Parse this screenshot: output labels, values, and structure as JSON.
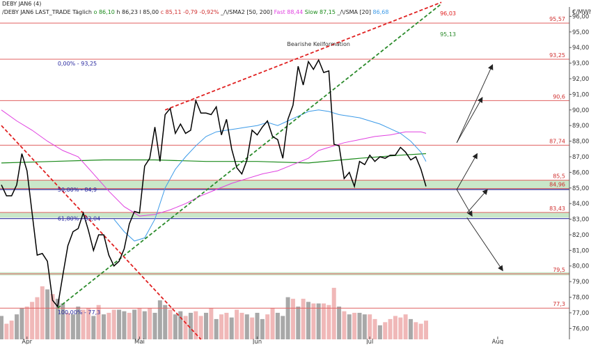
{
  "chart_data": {
    "type": "line",
    "title": "DEBY JAN6 (4)",
    "header": {
      "prefix": "/DEBY JAN6 LAST_TRADE Täglich",
      "open": "o 86,10",
      "high": "h 86,23",
      "low": "l 85,00",
      "close": "c 85,11",
      "change": "-0,79",
      "change_pct": "-0,92%",
      "sma2_label": "_/\\/SMA2 [50, 200]",
      "fast_label": "Fast 88,44",
      "slow_label": "Slow 87,15",
      "sma_label": "_/\\/SMA [20]",
      "sma_value": "86,68"
    },
    "y_unit": "€/MWh",
    "ylim": [
      75.3,
      96.6
    ],
    "y_ticks": [
      {
        "value": 76,
        "label": "76,00"
      },
      {
        "value": 77,
        "label": "77,00"
      },
      {
        "value": 78,
        "label": "78,00"
      },
      {
        "value": 79,
        "label": "79,00"
      },
      {
        "value": 80,
        "label": "80,00"
      },
      {
        "value": 81,
        "label": "81,00"
      },
      {
        "value": 82,
        "label": "82,00"
      },
      {
        "value": 83,
        "label": "83,00"
      },
      {
        "value": 84,
        "label": "84,00"
      },
      {
        "value": 85,
        "label": "85,00"
      },
      {
        "value": 86,
        "label": "86,00"
      },
      {
        "value": 87,
        "label": "87,00"
      },
      {
        "value": 88,
        "label": "88,00"
      },
      {
        "value": 89,
        "label": "89,00"
      },
      {
        "value": 90,
        "label": "90,00"
      },
      {
        "value": 91,
        "label": "91,00"
      },
      {
        "value": 92,
        "label": "92,00"
      },
      {
        "value": 93,
        "label": "93,00"
      },
      {
        "value": 94,
        "label": "94,00"
      },
      {
        "value": 95,
        "label": "95,00"
      },
      {
        "value": 96,
        "label": "96,00"
      }
    ],
    "x_range": [
      0,
      111
    ],
    "x_ticks": [
      {
        "x": 5,
        "label": "Apr"
      },
      {
        "x": 27,
        "label": "Mai"
      },
      {
        "x": 50,
        "label": "Jun"
      },
      {
        "x": 72,
        "label": "Jul"
      },
      {
        "x": 97,
        "label": "Aug"
      }
    ],
    "price": [
      [
        0,
        85.2
      ],
      [
        1,
        84.5
      ],
      [
        2,
        84.5
      ],
      [
        3,
        85.2
      ],
      [
        4,
        87.2
      ],
      [
        5,
        86.1
      ],
      [
        7,
        80.7
      ],
      [
        8,
        80.8
      ],
      [
        9,
        80.3
      ],
      [
        10,
        77.8
      ],
      [
        11,
        77.4
      ],
      [
        12,
        79.4
      ],
      [
        13,
        81.3
      ],
      [
        14,
        82.2
      ],
      [
        15,
        82.4
      ],
      [
        16,
        83.4
      ],
      [
        17,
        82.3
      ],
      [
        18,
        81.0
      ],
      [
        19,
        82.0
      ],
      [
        20,
        82.0
      ],
      [
        21,
        80.7
      ],
      [
        22,
        80.0
      ],
      [
        23,
        80.3
      ],
      [
        24,
        81.1
      ],
      [
        25,
        82.7
      ],
      [
        26,
        83.5
      ],
      [
        27,
        83.4
      ],
      [
        28,
        86.4
      ],
      [
        29,
        86.9
      ],
      [
        30,
        88.9
      ],
      [
        31,
        86.7
      ],
      [
        32,
        89.7
      ],
      [
        33,
        90.1
      ],
      [
        34,
        88.5
      ],
      [
        35,
        89.1
      ],
      [
        36,
        88.5
      ],
      [
        37,
        88.7
      ],
      [
        38,
        90.6
      ],
      [
        39,
        89.8
      ],
      [
        40,
        89.8
      ],
      [
        41,
        89.7
      ],
      [
        42,
        90.2
      ],
      [
        43,
        88.4
      ],
      [
        44,
        89.4
      ],
      [
        45,
        87.5
      ],
      [
        46,
        86.3
      ],
      [
        47,
        85.9
      ],
      [
        48,
        86.8
      ],
      [
        49,
        88.7
      ],
      [
        50,
        88.4
      ],
      [
        51,
        88.9
      ],
      [
        52,
        89.3
      ],
      [
        53,
        88.3
      ],
      [
        54,
        88.1
      ],
      [
        55,
        86.9
      ],
      [
        56,
        89.4
      ],
      [
        57,
        90.3
      ],
      [
        58,
        92.8
      ],
      [
        59,
        91.6
      ],
      [
        60,
        93.1
      ],
      [
        61,
        92.6
      ],
      [
        62,
        93.2
      ],
      [
        63,
        92.4
      ],
      [
        64,
        92.5
      ],
      [
        65,
        87.8
      ],
      [
        66,
        87.7
      ],
      [
        67,
        85.6
      ],
      [
        68,
        86.0
      ],
      [
        69,
        85.1
      ],
      [
        70,
        86.7
      ],
      [
        71,
        86.5
      ],
      [
        72,
        87.1
      ],
      [
        73,
        86.7
      ],
      [
        74,
        87.0
      ],
      [
        75,
        86.9
      ],
      [
        76,
        87.1
      ],
      [
        77,
        87.1
      ],
      [
        78,
        87.6
      ],
      [
        79,
        87.3
      ],
      [
        80,
        86.8
      ],
      [
        81,
        87.0
      ],
      [
        82,
        86.2
      ],
      [
        83,
        85.1
      ]
    ],
    "sma_blue": [
      [
        22,
        83.0
      ],
      [
        24,
        82.2
      ],
      [
        26,
        81.6
      ],
      [
        28,
        81.8
      ],
      [
        30,
        83.0
      ],
      [
        32,
        85.0
      ],
      [
        34,
        86.2
      ],
      [
        36,
        87.0
      ],
      [
        38,
        87.7
      ],
      [
        40,
        88.3
      ],
      [
        42,
        88.6
      ],
      [
        44,
        88.7
      ],
      [
        46,
        88.8
      ],
      [
        48,
        88.9
      ],
      [
        50,
        89.0
      ],
      [
        52,
        89.2
      ],
      [
        54,
        89.0
      ],
      [
        56,
        89.3
      ],
      [
        58,
        89.6
      ],
      [
        60,
        89.9
      ],
      [
        62,
        90.0
      ],
      [
        64,
        89.9
      ],
      [
        66,
        89.7
      ],
      [
        68,
        89.6
      ],
      [
        70,
        89.5
      ],
      [
        72,
        89.3
      ],
      [
        74,
        89.1
      ],
      [
        76,
        88.8
      ],
      [
        78,
        88.5
      ],
      [
        80,
        88.0
      ],
      [
        82,
        87.3
      ],
      [
        83,
        86.7
      ]
    ],
    "sma_magenta": [
      [
        0,
        90.0
      ],
      [
        3,
        89.3
      ],
      [
        6,
        88.7
      ],
      [
        9,
        88.0
      ],
      [
        12,
        87.4
      ],
      [
        15,
        87.0
      ],
      [
        18,
        85.9
      ],
      [
        21,
        84.8
      ],
      [
        24,
        83.8
      ],
      [
        27,
        83.2
      ],
      [
        30,
        83.3
      ],
      [
        33,
        83.6
      ],
      [
        36,
        84.0
      ],
      [
        39,
        84.5
      ],
      [
        42,
        84.9
      ],
      [
        45,
        85.3
      ],
      [
        48,
        85.6
      ],
      [
        51,
        85.9
      ],
      [
        54,
        86.1
      ],
      [
        57,
        86.5
      ],
      [
        60,
        86.9
      ],
      [
        62,
        87.4
      ],
      [
        64,
        87.6
      ],
      [
        67,
        87.9
      ],
      [
        70,
        88.1
      ],
      [
        73,
        88.3
      ],
      [
        76,
        88.4
      ],
      [
        79,
        88.6
      ],
      [
        82,
        88.6
      ],
      [
        83,
        88.5
      ]
    ],
    "sma_green": [
      [
        0,
        86.6
      ],
      [
        10,
        86.7
      ],
      [
        20,
        86.8
      ],
      [
        30,
        86.8
      ],
      [
        40,
        86.7
      ],
      [
        50,
        86.7
      ],
      [
        60,
        86.6
      ],
      [
        70,
        86.9
      ],
      [
        78,
        87.1
      ],
      [
        83,
        87.2
      ]
    ],
    "trendlines": [
      {
        "kind": "resistance",
        "color": "#e02020",
        "from": [
          32,
          90.0
        ],
        "to": [
          86,
          96.9
        ]
      },
      {
        "kind": "support",
        "color": "#2a8a2a",
        "from": [
          11,
          77.3
        ],
        "to": [
          86,
          96.8
        ]
      },
      {
        "kind": "down",
        "color": "#e02020",
        "from": [
          0,
          89.0
        ],
        "to": [
          39,
          75.3
        ]
      }
    ],
    "support_resistance": [
      {
        "value": 95.57,
        "label": "95,57",
        "color": "#e06060"
      },
      {
        "value": 93.25,
        "label": "93,25",
        "color": "#e06060"
      },
      {
        "value": 90.6,
        "label": "90,6",
        "color": "#e06060"
      },
      {
        "value": 87.74,
        "label": "87,74",
        "color": "#e06060"
      },
      {
        "value": 85.5,
        "label": "85,5",
        "color": "#e06060"
      },
      {
        "value": 84.96,
        "label": "84,96",
        "color": "#e06060"
      },
      {
        "value": 83.43,
        "label": "83,43",
        "color": "#e06060"
      },
      {
        "value": 79.5,
        "label": "79,5",
        "color": "#e06060"
      },
      {
        "value": 77.3,
        "label": "77,3",
        "color": "#e06060"
      }
    ],
    "bands": [
      {
        "from": 84.9,
        "to": 85.5
      },
      {
        "from": 83.1,
        "to": 83.43
      },
      {
        "from": 79.4,
        "to": 79.6
      }
    ],
    "fib_lines": [
      {
        "value": 84.9,
        "label": "50,00% - 84,9",
        "color": "#3030a0",
        "label_x": 11
      },
      {
        "value": 83.04,
        "label": "61,80% - 83,04",
        "color": "#3030a0",
        "label_x": 11
      }
    ],
    "fib_texts": [
      {
        "value": 93.25,
        "label": "0,00% - 93,25",
        "x": 11
      },
      {
        "value": 77.3,
        "label": "100,00% - 77,3",
        "x": 11
      }
    ],
    "trend_value_labels": [
      {
        "x": 86,
        "value": 96.03,
        "label": "96,03",
        "color": "#e02020"
      },
      {
        "x": 86,
        "value": 95.13,
        "label": "95,13",
        "color": "#2a8a2a"
      }
    ],
    "annotation": {
      "label": "Bearishe Keilformation",
      "x": 62,
      "value": 94.1
    },
    "arrows": [
      {
        "from": [
          89,
          87.9
        ],
        "to": [
          96,
          92.9
        ]
      },
      {
        "from": [
          89,
          87.9
        ],
        "to": [
          94,
          90.8
        ]
      },
      {
        "from": [
          89,
          84.9
        ],
        "to": [
          93,
          87.2
        ]
      },
      {
        "from": [
          91,
          83.4
        ],
        "to": [
          95,
          84.9
        ]
      },
      {
        "from": [
          89,
          84.9
        ],
        "to": [
          92,
          83.2
        ]
      },
      {
        "from": [
          91,
          83.1
        ],
        "to": [
          98,
          79.7
        ]
      }
    ],
    "volume": {
      "ylim": [
        75.3,
        79.6
      ],
      "bars": [
        {
          "x": 0,
          "h": 76.8,
          "c": "gray"
        },
        {
          "x": 1,
          "h": 76.3,
          "c": "pink"
        },
        {
          "x": 2,
          "h": 76.5,
          "c": "pink"
        },
        {
          "x": 3,
          "h": 76.9,
          "c": "gray"
        },
        {
          "x": 4,
          "h": 77.3,
          "c": "gray"
        },
        {
          "x": 5,
          "h": 77.4,
          "c": "pink"
        },
        {
          "x": 6,
          "h": 77.7,
          "c": "pink"
        },
        {
          "x": 7,
          "h": 78.0,
          "c": "pink"
        },
        {
          "x": 8,
          "h": 78.7,
          "c": "pink"
        },
        {
          "x": 9,
          "h": 78.5,
          "c": "gray"
        },
        {
          "x": 10,
          "h": 78.2,
          "c": "pink"
        },
        {
          "x": 11,
          "h": 77.9,
          "c": "gray"
        },
        {
          "x": 12,
          "h": 77.6,
          "c": "gray"
        },
        {
          "x": 13,
          "h": 77.0,
          "c": "pink"
        },
        {
          "x": 14,
          "h": 76.9,
          "c": "gray"
        },
        {
          "x": 15,
          "h": 77.4,
          "c": "gray"
        },
        {
          "x": 16,
          "h": 77.2,
          "c": "pink"
        },
        {
          "x": 17,
          "h": 77.3,
          "c": "pink"
        },
        {
          "x": 18,
          "h": 76.8,
          "c": "gray"
        },
        {
          "x": 19,
          "h": 77.5,
          "c": "pink"
        },
        {
          "x": 20,
          "h": 76.9,
          "c": "gray"
        },
        {
          "x": 21,
          "h": 77.0,
          "c": "pink"
        },
        {
          "x": 22,
          "h": 77.2,
          "c": "pink"
        },
        {
          "x": 23,
          "h": 77.2,
          "c": "gray"
        },
        {
          "x": 24,
          "h": 77.1,
          "c": "gray"
        },
        {
          "x": 25,
          "h": 77.0,
          "c": "pink"
        },
        {
          "x": 26,
          "h": 77.2,
          "c": "gray"
        },
        {
          "x": 27,
          "h": 77.3,
          "c": "pink"
        },
        {
          "x": 28,
          "h": 77.1,
          "c": "gray"
        },
        {
          "x": 29,
          "h": 77.3,
          "c": "pink"
        },
        {
          "x": 30,
          "h": 77.0,
          "c": "gray"
        },
        {
          "x": 31,
          "h": 77.8,
          "c": "gray"
        },
        {
          "x": 32,
          "h": 77.5,
          "c": "gray"
        },
        {
          "x": 33,
          "h": 77.2,
          "c": "pink"
        },
        {
          "x": 34,
          "h": 76.9,
          "c": "gray"
        },
        {
          "x": 35,
          "h": 77.1,
          "c": "gray"
        },
        {
          "x": 36,
          "h": 76.8,
          "c": "pink"
        },
        {
          "x": 37,
          "h": 77.0,
          "c": "gray"
        },
        {
          "x": 38,
          "h": 77.1,
          "c": "pink"
        },
        {
          "x": 39,
          "h": 76.8,
          "c": "pink"
        },
        {
          "x": 40,
          "h": 77.0,
          "c": "gray"
        },
        {
          "x": 41,
          "h": 77.3,
          "c": "pink"
        },
        {
          "x": 42,
          "h": 76.6,
          "c": "gray"
        },
        {
          "x": 43,
          "h": 76.9,
          "c": "pink"
        },
        {
          "x": 44,
          "h": 77.0,
          "c": "pink"
        },
        {
          "x": 45,
          "h": 76.7,
          "c": "gray"
        },
        {
          "x": 46,
          "h": 77.2,
          "c": "pink"
        },
        {
          "x": 47,
          "h": 77.0,
          "c": "pink"
        },
        {
          "x": 48,
          "h": 76.9,
          "c": "gray"
        },
        {
          "x": 49,
          "h": 76.7,
          "c": "pink"
        },
        {
          "x": 50,
          "h": 77.0,
          "c": "gray"
        },
        {
          "x": 51,
          "h": 76.6,
          "c": "gray"
        },
        {
          "x": 52,
          "h": 76.9,
          "c": "pink"
        },
        {
          "x": 53,
          "h": 77.3,
          "c": "pink"
        },
        {
          "x": 54,
          "h": 77.0,
          "c": "gray"
        },
        {
          "x": 55,
          "h": 76.8,
          "c": "gray"
        },
        {
          "x": 56,
          "h": 78.0,
          "c": "gray"
        },
        {
          "x": 57,
          "h": 77.9,
          "c": "pink"
        },
        {
          "x": 58,
          "h": 77.4,
          "c": "gray"
        },
        {
          "x": 59,
          "h": 77.9,
          "c": "pink"
        },
        {
          "x": 60,
          "h": 77.7,
          "c": "gray"
        },
        {
          "x": 61,
          "h": 77.6,
          "c": "pink"
        },
        {
          "x": 62,
          "h": 77.6,
          "c": "gray"
        },
        {
          "x": 63,
          "h": 77.6,
          "c": "pink"
        },
        {
          "x": 64,
          "h": 77.5,
          "c": "pink"
        },
        {
          "x": 65,
          "h": 78.6,
          "c": "pink"
        },
        {
          "x": 66,
          "h": 77.4,
          "c": "gray"
        },
        {
          "x": 67,
          "h": 77.1,
          "c": "pink"
        },
        {
          "x": 68,
          "h": 76.9,
          "c": "gray"
        },
        {
          "x": 69,
          "h": 77.0,
          "c": "pink"
        },
        {
          "x": 70,
          "h": 77.0,
          "c": "gray"
        },
        {
          "x": 71,
          "h": 76.9,
          "c": "gray"
        },
        {
          "x": 72,
          "h": 76.9,
          "c": "pink"
        },
        {
          "x": 73,
          "h": 76.6,
          "c": "pink"
        },
        {
          "x": 74,
          "h": 76.2,
          "c": "gray"
        },
        {
          "x": 75,
          "h": 76.4,
          "c": "pink"
        },
        {
          "x": 76,
          "h": 76.6,
          "c": "pink"
        },
        {
          "x": 77,
          "h": 76.8,
          "c": "pink"
        },
        {
          "x": 78,
          "h": 76.7,
          "c": "pink"
        },
        {
          "x": 79,
          "h": 76.9,
          "c": "pink"
        },
        {
          "x": 80,
          "h": 76.6,
          "c": "gray"
        },
        {
          "x": 81,
          "h": 76.4,
          "c": "pink"
        },
        {
          "x": 82,
          "h": 76.3,
          "c": "pink"
        },
        {
          "x": 83,
          "h": 76.5,
          "c": "pink"
        }
      ]
    },
    "colors": {
      "price": "#000000",
      "sma_blue": "#3b9ae8",
      "sma_magenta": "#e040e0",
      "sma_green": "#1a8a1a",
      "band": "#c9e7c9",
      "vol_gray": "#a8a8a8",
      "vol_pink": "#f0b8b8",
      "arrow": "#222222"
    }
  }
}
